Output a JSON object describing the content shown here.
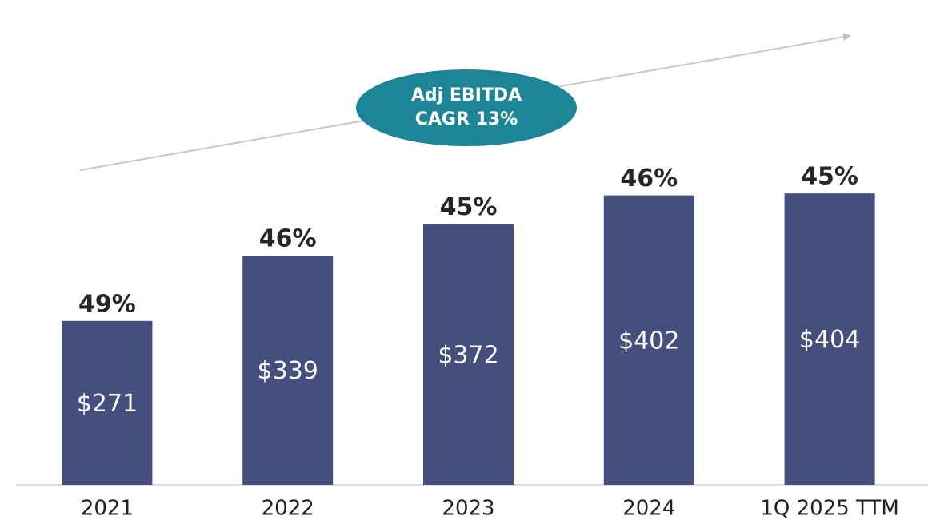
{
  "chart_data": {
    "type": "bar",
    "annotation": [
      "Adj EBITDA",
      "CAGR 13%"
    ],
    "categories": [
      "2021",
      "2022",
      "2023",
      "2024",
      "1Q 2025 TTM"
    ],
    "values": [
      271,
      339,
      372,
      402,
      404
    ],
    "value_labels": [
      "$271",
      "$339",
      "$372",
      "$402",
      "$404"
    ],
    "margin_labels": [
      "49%",
      "46%",
      "45%",
      "46%",
      "45%"
    ],
    "color": "#454e7c",
    "ylim": [
      100,
      590
    ]
  }
}
